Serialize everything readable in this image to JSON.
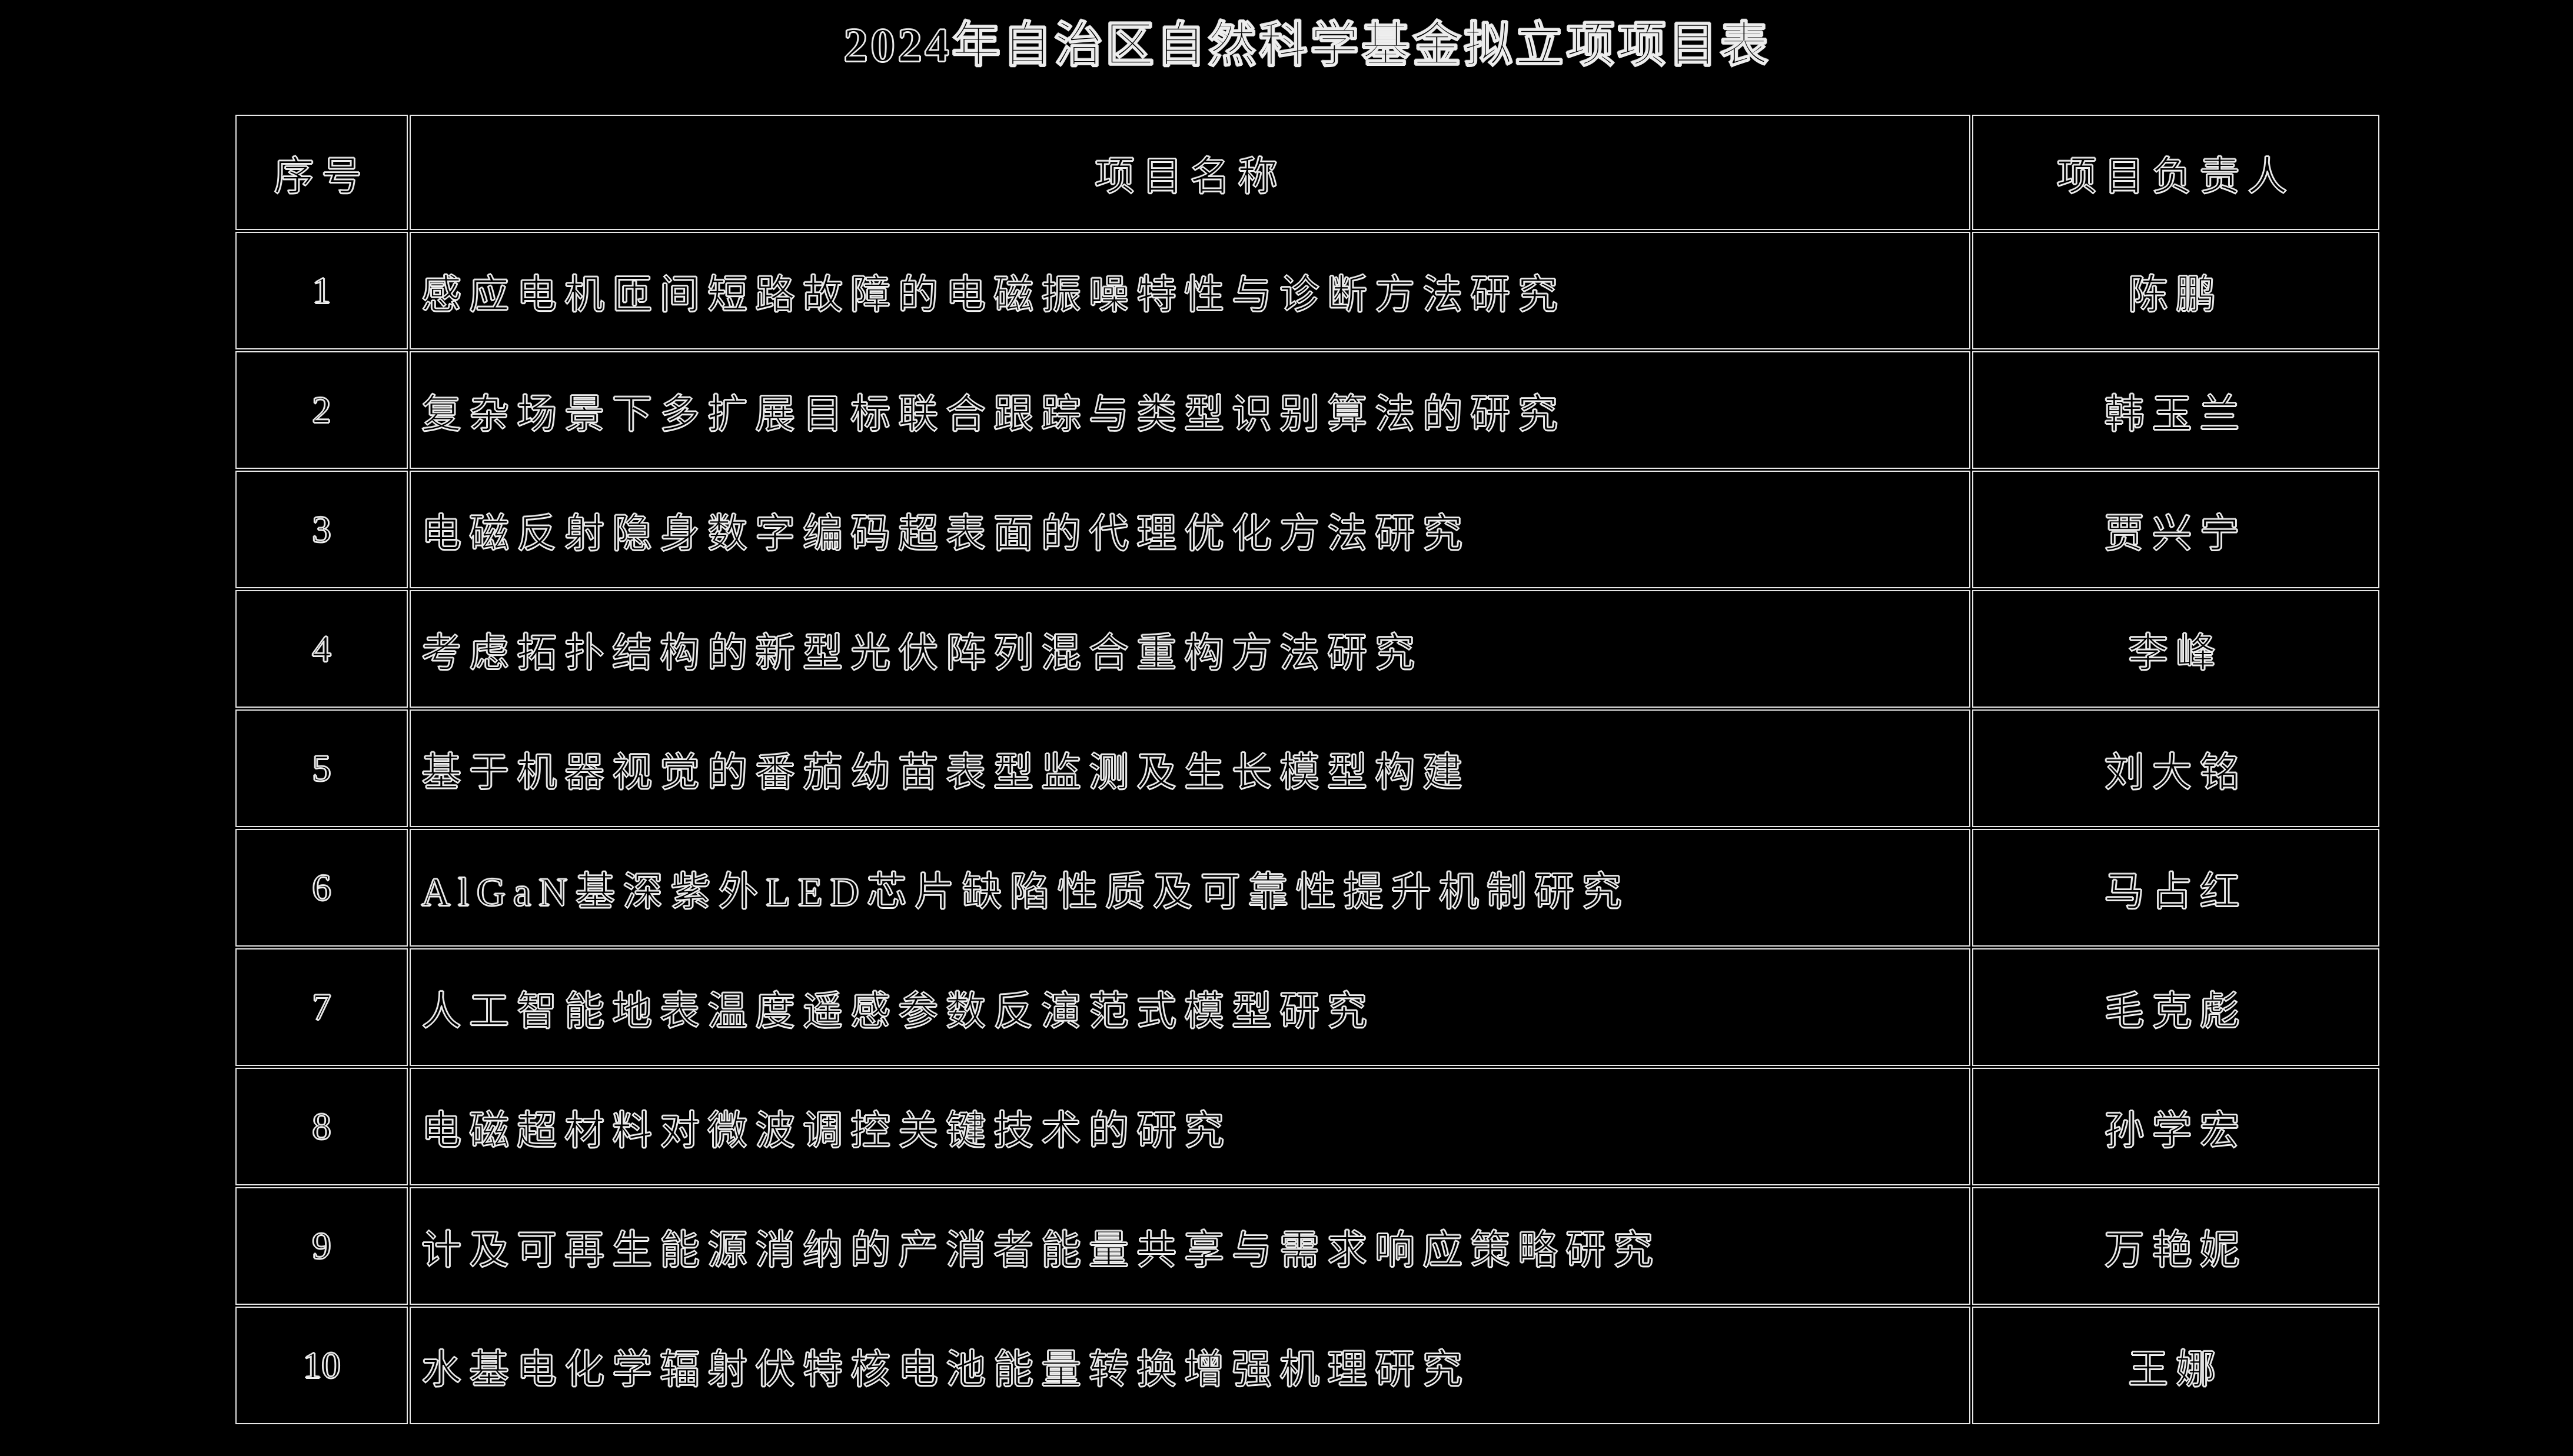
{
  "page": {
    "background": "#000000",
    "title": "2024年自治区自然科学基金拟立项项目表"
  },
  "colors": {
    "border": "#e8e8e8",
    "text_fill": "#000000",
    "text_outline": "#ededed"
  },
  "table": {
    "headers": {
      "no": "序号",
      "name": "项目名称",
      "leader": "项目负责人"
    },
    "rows": [
      {
        "no": "1",
        "name": "感应电机匝间短路故障的电磁振噪特性与诊断方法研究",
        "leader": "陈鹏"
      },
      {
        "no": "2",
        "name": "复杂场景下多扩展目标联合跟踪与类型识别算法的研究",
        "leader": "韩玉兰"
      },
      {
        "no": "3",
        "name": "电磁反射隐身数字编码超表面的代理优化方法研究",
        "leader": "贾兴宁"
      },
      {
        "no": "4",
        "name": "考虑拓扑结构的新型光伏阵列混合重构方法研究",
        "leader": "李峰"
      },
      {
        "no": "5",
        "name": "基于机器视觉的番茄幼苗表型监测及生长模型构建",
        "leader": "刘大铭"
      },
      {
        "no": "6",
        "name": "AlGaN基深紫外LED芯片缺陷性质及可靠性提升机制研究",
        "leader": "马占红"
      },
      {
        "no": "7",
        "name": "人工智能地表温度遥感参数反演范式模型研究",
        "leader": "毛克彪"
      },
      {
        "no": "8",
        "name": "电磁超材料对微波调控关键技术的研究",
        "leader": "孙学宏"
      },
      {
        "no": "9",
        "name": "计及可再生能源消纳的产消者能量共享与需求响应策略研究",
        "leader": "万艳妮"
      },
      {
        "no": "10",
        "name": "水基电化学辐射伏特核电池能量转换增强机理研究",
        "leader": "王娜"
      }
    ]
  }
}
